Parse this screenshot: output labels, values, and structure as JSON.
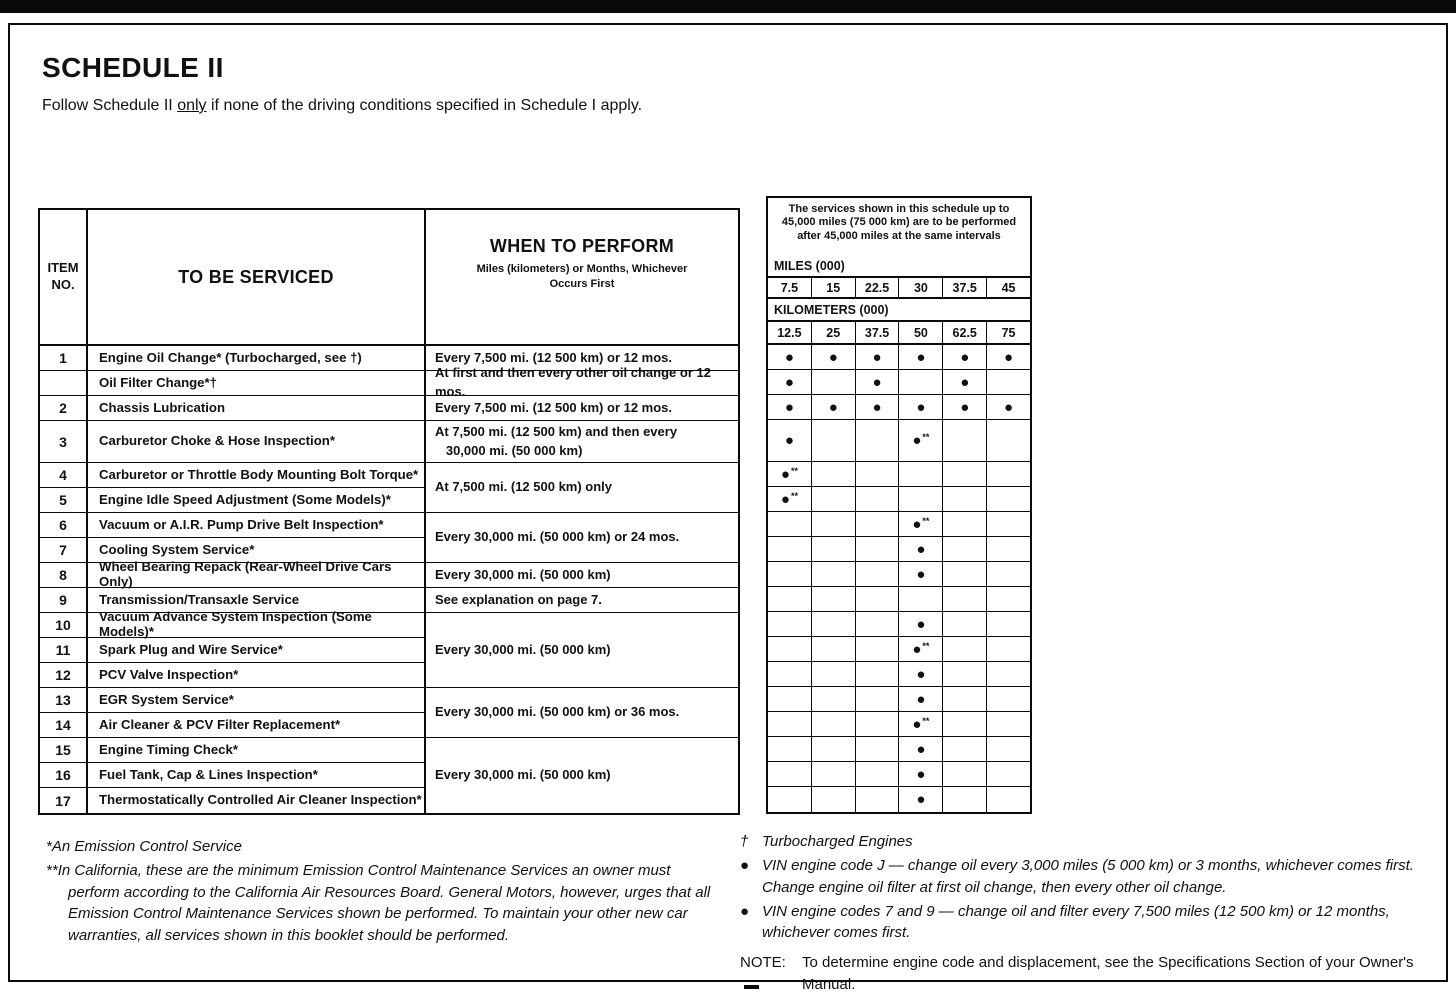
{
  "page": {
    "title": "SCHEDULE II",
    "intro_before": "Follow Schedule II ",
    "intro_underlined": "only",
    "intro_after": " if none of the driving conditions specified in Schedule I apply."
  },
  "service_table": {
    "header": {
      "item_no_line1": "ITEM",
      "item_no_line2": "NO.",
      "to_be_serviced": "TO BE SERVICED",
      "when_title": "WHEN TO PERFORM",
      "when_subtitle": "Miles (kilometers) or Months, Whichever\nOccurs First"
    },
    "rows": [
      {
        "item": "1",
        "service": "Engine Oil Change* (Turbocharged, see †)",
        "tall": false,
        "dots": [
          "d",
          "d",
          "d",
          "d",
          "d",
          "d"
        ]
      },
      {
        "item": "",
        "service": "Oil Filter Change*†",
        "tall": false,
        "dots": [
          "d",
          "",
          "d",
          "",
          "d",
          ""
        ]
      },
      {
        "item": "2",
        "service": "Chassis Lubrication",
        "tall": false,
        "dots": [
          "d",
          "d",
          "d",
          "d",
          "d",
          "d"
        ]
      },
      {
        "item": "3",
        "service": "Carburetor Choke & Hose Inspection*",
        "tall": true,
        "dots": [
          "d",
          "",
          "",
          "d**",
          "",
          ""
        ]
      },
      {
        "item": "4",
        "service": "Carburetor or Throttle Body Mounting Bolt Torque*",
        "tall": false,
        "dots": [
          "d**",
          "",
          "",
          "",
          "",
          ""
        ]
      },
      {
        "item": "5",
        "service": "Engine Idle Speed Adjustment (Some Models)*",
        "tall": false,
        "dots": [
          "d**",
          "",
          "",
          "",
          "",
          ""
        ]
      },
      {
        "item": "6",
        "service": "Vacuum or A.I.R. Pump Drive Belt Inspection*",
        "tall": false,
        "dots": [
          "",
          "",
          "",
          "d**",
          "",
          ""
        ]
      },
      {
        "item": "7",
        "service": "Cooling System Service*",
        "tall": false,
        "dots": [
          "",
          "",
          "",
          "d",
          "",
          ""
        ]
      },
      {
        "item": "8",
        "service": "Wheel Bearing Repack (Rear-Wheel Drive Cars Only)",
        "tall": false,
        "dots": [
          "",
          "",
          "",
          "d",
          "",
          ""
        ]
      },
      {
        "item": "9",
        "service": "Transmission/Transaxle Service",
        "tall": false,
        "dots": [
          "",
          "",
          "",
          "",
          "",
          ""
        ]
      },
      {
        "item": "10",
        "service": "Vacuum Advance System Inspection (Some Models)*",
        "tall": false,
        "dots": [
          "",
          "",
          "",
          "d",
          "",
          ""
        ]
      },
      {
        "item": "11",
        "service": "Spark Plug and Wire Service*",
        "tall": false,
        "dots": [
          "",
          "",
          "",
          "d**",
          "",
          ""
        ]
      },
      {
        "item": "12",
        "service": "PCV Valve Inspection*",
        "tall": false,
        "dots": [
          "",
          "",
          "",
          "d",
          "",
          ""
        ]
      },
      {
        "item": "13",
        "service": "EGR System Service*",
        "tall": false,
        "dots": [
          "",
          "",
          "",
          "d",
          "",
          ""
        ]
      },
      {
        "item": "14",
        "service": "Air Cleaner & PCV Filter Replacement*",
        "tall": false,
        "dots": [
          "",
          "",
          "",
          "d**",
          "",
          ""
        ]
      },
      {
        "item": "15",
        "service": "Engine Timing Check*",
        "tall": false,
        "dots": [
          "",
          "",
          "",
          "d",
          "",
          ""
        ]
      },
      {
        "item": "16",
        "service": "Fuel Tank, Cap & Lines Inspection*",
        "tall": false,
        "dots": [
          "",
          "",
          "",
          "d",
          "",
          ""
        ]
      },
      {
        "item": "17",
        "service": "Thermostatically Controlled Air Cleaner Inspection*",
        "tall": false,
        "dots": [
          "",
          "",
          "",
          "d",
          "",
          ""
        ]
      }
    ],
    "when_groups": [
      {
        "start": 0,
        "span": 1,
        "text": "Every 7,500 mi. (12 500 km) or 12 mos."
      },
      {
        "start": 1,
        "span": 1,
        "text": "At first and then every other oil change or 12 mos."
      },
      {
        "start": 2,
        "span": 1,
        "text": "Every 7,500 mi. (12 500 km) or 12 mos."
      },
      {
        "start": 3,
        "span": 1,
        "text": "At 7,500 mi. (12 500 km) and then every\n   30,000 mi. (50 000 km)"
      },
      {
        "start": 4,
        "span": 2,
        "text": "At 7,500 mi. (12 500 km) only"
      },
      {
        "start": 6,
        "span": 2,
        "text": "Every 30,000 mi. (50 000 km) or 24 mos."
      },
      {
        "start": 8,
        "span": 1,
        "text": "Every 30,000 mi. (50 000 km)"
      },
      {
        "start": 9,
        "span": 1,
        "text": "See explanation on page 7."
      },
      {
        "start": 10,
        "span": 3,
        "text": "Every 30,000 mi. (50 000 km)"
      },
      {
        "start": 13,
        "span": 2,
        "text": "Every 30,000 mi. (50 000 km) or 36 mos."
      },
      {
        "start": 15,
        "span": 3,
        "text": "Every 30,000 mi. (50 000 km)"
      }
    ]
  },
  "interval_grid": {
    "note": "The services shown in this schedule up to 45,000 miles (75 000 km) are to be performed after 45,000 miles at the same intervals",
    "miles_label": "MILES (000)",
    "miles": [
      "7.5",
      "15",
      "22.5",
      "30",
      "37.5",
      "45"
    ],
    "km_label": "KILOMETERS (000)",
    "kilometers": [
      "12.5",
      "25",
      "37.5",
      "50",
      "62.5",
      "75"
    ],
    "dot_glyph": "●",
    "dot_double_star": "**"
  },
  "footnotes": {
    "left": [
      {
        "marker": "*",
        "text": "An Emission Control Service"
      },
      {
        "marker": "**",
        "text": "In California, these are the minimum Emission Control Maintenance Services an owner must perform according to the California Air Resources Board. General Motors, however, urges that all Emission Control Maintenance Services shown be performed. To maintain your other new car warranties, all services shown in this booklet should be performed."
      }
    ],
    "right": {
      "dagger_marker": "†",
      "dagger_text": "Turbocharged Engines",
      "bullet_glyph": "●",
      "bullets": [
        "VIN engine code J — change oil every 3,000 miles (5 000 km) or 3 months, whichever comes first. Change engine oil filter at first oil change, then every other oil change.",
        "VIN engine codes 7 and 9 — change oil and filter every 7,500 miles (12 500 km) or 12 months, whichever comes first."
      ],
      "note_label": "NOTE:",
      "note_text": "To determine engine code and displacement, see the Specifications Section of your Owner's Manual."
    }
  },
  "colors": {
    "ink": "#0a0a0a",
    "paper": "#ffffff"
  }
}
